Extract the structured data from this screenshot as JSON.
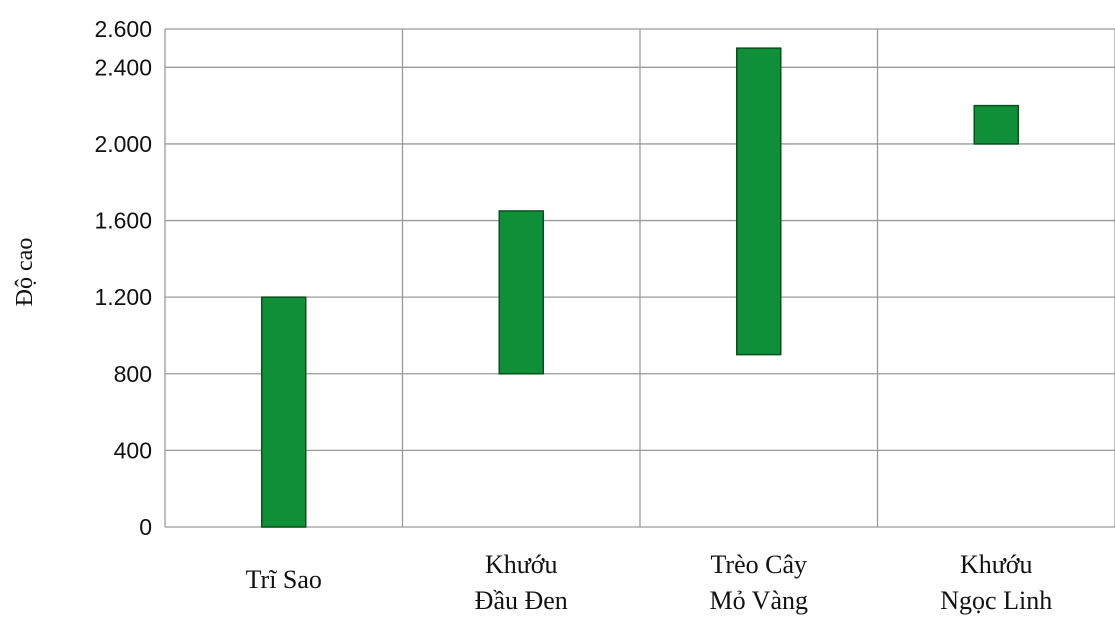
{
  "chart_data": {
    "type": "bar",
    "subtype": "floating-range",
    "title": "",
    "xlabel": "",
    "ylabel": "Độ cao",
    "ylim": [
      0,
      2600
    ],
    "yticks": [
      0,
      400,
      800,
      1200,
      1600,
      2000,
      2400,
      2600
    ],
    "ytick_labels": [
      "0",
      "400",
      "800",
      "1.200",
      "1.600",
      "2.000",
      "2.400",
      "2.600"
    ],
    "categories": [
      [
        "Trĩ Sao"
      ],
      [
        "Khướu",
        "Đầu Đen"
      ],
      [
        "Trèo Cây",
        "Mỏ Vàng"
      ],
      [
        "Khướu",
        "Ngọc Linh"
      ]
    ],
    "series": [
      {
        "ranges": [
          [
            0,
            1200
          ],
          [
            800,
            1650
          ],
          [
            900,
            2500
          ],
          [
            2000,
            2200
          ]
        ]
      }
    ],
    "bar_color": "#0f8f37",
    "grid": true,
    "legend": "none"
  }
}
